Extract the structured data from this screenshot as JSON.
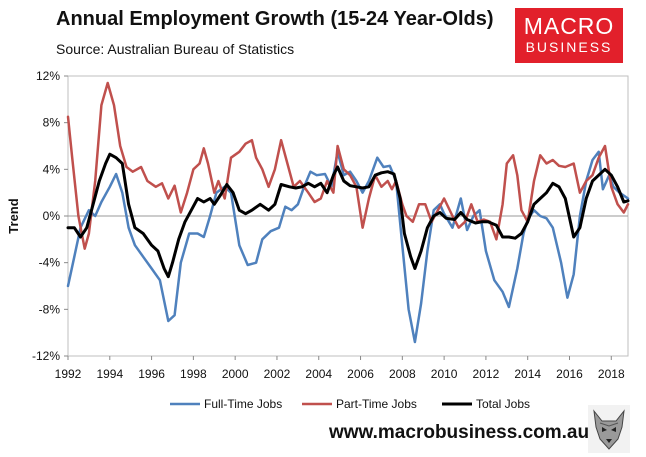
{
  "header": {
    "title": "Annual Employment Growth (15-24 Year-Olds)",
    "subtitle": "Source: Australian Bureau of Statistics"
  },
  "logo": {
    "top": "MACRO",
    "bottom": "BUSINESS",
    "color": "#e2202b"
  },
  "footer": {
    "website": "www.macrobusiness.com.au"
  },
  "chart_data": {
    "type": "line",
    "title": "Annual Employment Growth (15-24 Year-Olds)",
    "xlabel": "",
    "ylabel": "Trend",
    "xlim": [
      1992,
      2018.8
    ],
    "ylim": [
      -12,
      12
    ],
    "y_ticks": [
      -12,
      -8,
      -4,
      0,
      4,
      8,
      12
    ],
    "y_tick_labels": [
      "-12%",
      "-8%",
      "-4%",
      "0%",
      "4%",
      "8%",
      "12%"
    ],
    "x_ticks": [
      1992,
      1994,
      1996,
      1998,
      2000,
      2002,
      2004,
      2006,
      2008,
      2010,
      2012,
      2014,
      2016,
      2018
    ],
    "x_tick_labels": [
      "1992",
      "1994",
      "1996",
      "1998",
      "2000",
      "2002",
      "2004",
      "2006",
      "2008",
      "2010",
      "2012",
      "2014",
      "2016",
      "2018"
    ],
    "legend_position": "bottom",
    "series": [
      {
        "name": "Full-Time Jobs",
        "color": "#4f81bd",
        "points": [
          [
            1992,
            -6
          ],
          [
            1992.3,
            -3.5
          ],
          [
            1992.6,
            -1
          ],
          [
            1993,
            0.5
          ],
          [
            1993.3,
            0
          ],
          [
            1993.6,
            1.2
          ],
          [
            1994,
            2.5
          ],
          [
            1994.3,
            3.6
          ],
          [
            1994.6,
            2
          ],
          [
            1994.9,
            -1
          ],
          [
            1995.2,
            -2.5
          ],
          [
            1995.6,
            -3.5
          ],
          [
            1996,
            -4.5
          ],
          [
            1996.4,
            -5.5
          ],
          [
            1996.8,
            -9
          ],
          [
            1997.1,
            -8.5
          ],
          [
            1997.4,
            -4
          ],
          [
            1997.8,
            -1.5
          ],
          [
            1998.2,
            -1.5
          ],
          [
            1998.5,
            -1.8
          ],
          [
            1998.8,
            0
          ],
          [
            1999.1,
            2
          ],
          [
            1999.5,
            2.5
          ],
          [
            1999.8,
            2
          ],
          [
            2000.2,
            -2.5
          ],
          [
            2000.6,
            -4.2
          ],
          [
            2001,
            -4
          ],
          [
            2001.3,
            -2
          ],
          [
            2001.7,
            -1.3
          ],
          [
            2002.1,
            -1
          ],
          [
            2002.4,
            0.8
          ],
          [
            2002.7,
            0.5
          ],
          [
            2003,
            1
          ],
          [
            2003.3,
            2.5
          ],
          [
            2003.6,
            3.8
          ],
          [
            2003.9,
            3.5
          ],
          [
            2004.3,
            3.6
          ],
          [
            2004.6,
            2.5
          ],
          [
            2004.9,
            5.5
          ],
          [
            2005.2,
            3.5
          ],
          [
            2005.5,
            3.8
          ],
          [
            2005.8,
            3
          ],
          [
            2006.1,
            2
          ],
          [
            2006.4,
            3
          ],
          [
            2006.8,
            5
          ],
          [
            2007.1,
            4.2
          ],
          [
            2007.4,
            4.3
          ],
          [
            2007.7,
            3
          ],
          [
            2008,
            -2.5
          ],
          [
            2008.3,
            -8
          ],
          [
            2008.6,
            -10.8
          ],
          [
            2008.9,
            -7.5
          ],
          [
            2009.2,
            -3
          ],
          [
            2009.5,
            0.5
          ],
          [
            2009.8,
            1
          ],
          [
            2010,
            0.2
          ],
          [
            2010.4,
            -1
          ],
          [
            2010.8,
            1.5
          ],
          [
            2011.1,
            -1.2
          ],
          [
            2011.4,
            0
          ],
          [
            2011.7,
            0.5
          ],
          [
            2012,
            -3
          ],
          [
            2012.4,
            -5.5
          ],
          [
            2012.8,
            -6.5
          ],
          [
            2013.1,
            -7.8
          ],
          [
            2013.5,
            -4.5
          ],
          [
            2013.8,
            -1.5
          ],
          [
            2014,
            -0.3
          ],
          [
            2014.3,
            0.5
          ],
          [
            2014.6,
            0
          ],
          [
            2014.9,
            -0.2
          ],
          [
            2015.2,
            -1
          ],
          [
            2015.6,
            -4
          ],
          [
            2015.9,
            -7
          ],
          [
            2016.2,
            -5
          ],
          [
            2016.5,
            0
          ],
          [
            2016.8,
            3
          ],
          [
            2017.1,
            4.8
          ],
          [
            2017.4,
            5.5
          ],
          [
            2017.6,
            2.3
          ],
          [
            2017.9,
            3.5
          ],
          [
            2018.1,
            2.5
          ],
          [
            2018.4,
            2
          ],
          [
            2018.8,
            1.5
          ]
        ]
      },
      {
        "name": "Part-Time Jobs",
        "color": "#c0504d",
        "points": [
          [
            1992,
            8.5
          ],
          [
            1992.2,
            5
          ],
          [
            1992.5,
            0
          ],
          [
            1992.8,
            -2.8
          ],
          [
            1993,
            -1.5
          ],
          [
            1993.3,
            3
          ],
          [
            1993.6,
            9.5
          ],
          [
            1993.9,
            11.4
          ],
          [
            1994.2,
            9.5
          ],
          [
            1994.5,
            6
          ],
          [
            1994.8,
            4.2
          ],
          [
            1995.1,
            3.8
          ],
          [
            1995.5,
            4.2
          ],
          [
            1995.8,
            3
          ],
          [
            1996.2,
            2.5
          ],
          [
            1996.5,
            2.8
          ],
          [
            1996.8,
            1.5
          ],
          [
            1997.1,
            2.6
          ],
          [
            1997.4,
            0.3
          ],
          [
            1997.7,
            2
          ],
          [
            1998,
            4
          ],
          [
            1998.3,
            4.5
          ],
          [
            1998.5,
            5.8
          ],
          [
            1998.7,
            4.5
          ],
          [
            1999,
            2
          ],
          [
            1999.2,
            3
          ],
          [
            1999.5,
            1.5
          ],
          [
            1999.8,
            5
          ],
          [
            2000.2,
            5.5
          ],
          [
            2000.5,
            6.2
          ],
          [
            2000.8,
            6.5
          ],
          [
            2001,
            5
          ],
          [
            2001.3,
            4
          ],
          [
            2001.6,
            2.5
          ],
          [
            2001.9,
            4
          ],
          [
            2002.2,
            6.5
          ],
          [
            2002.5,
            4.5
          ],
          [
            2002.8,
            2.5
          ],
          [
            2003.1,
            3
          ],
          [
            2003.5,
            2
          ],
          [
            2003.8,
            1.2
          ],
          [
            2004.1,
            1.5
          ],
          [
            2004.4,
            3
          ],
          [
            2004.7,
            2
          ],
          [
            2004.9,
            6
          ],
          [
            2005.2,
            4
          ],
          [
            2005.5,
            3.5
          ],
          [
            2005.8,
            2.5
          ],
          [
            2006.1,
            -1
          ],
          [
            2006.4,
            1.5
          ],
          [
            2006.7,
            3.5
          ],
          [
            2007,
            2.5
          ],
          [
            2007.3,
            3
          ],
          [
            2007.5,
            2.3
          ],
          [
            2007.7,
            3
          ],
          [
            2008,
            1
          ],
          [
            2008.2,
            0
          ],
          [
            2008.5,
            -0.5
          ],
          [
            2008.8,
            1
          ],
          [
            2009.1,
            1
          ],
          [
            2009.4,
            -0.5
          ],
          [
            2009.7,
            0.5
          ],
          [
            2010,
            1.5
          ],
          [
            2010.4,
            0
          ],
          [
            2010.7,
            -1
          ],
          [
            2011,
            -0.5
          ],
          [
            2011.3,
            1
          ],
          [
            2011.6,
            -0.5
          ],
          [
            2011.9,
            -0.3
          ],
          [
            2012.2,
            -0.5
          ],
          [
            2012.5,
            -2
          ],
          [
            2012.8,
            1
          ],
          [
            2013,
            4.5
          ],
          [
            2013.3,
            5.2
          ],
          [
            2013.5,
            3.5
          ],
          [
            2013.7,
            0.5
          ],
          [
            2014,
            -0.5
          ],
          [
            2014.3,
            3
          ],
          [
            2014.6,
            5.2
          ],
          [
            2014.9,
            4.5
          ],
          [
            2015.2,
            4.8
          ],
          [
            2015.5,
            4.3
          ],
          [
            2015.8,
            4.2
          ],
          [
            2016.2,
            4.5
          ],
          [
            2016.5,
            2
          ],
          [
            2016.8,
            3
          ],
          [
            2017.1,
            3.5
          ],
          [
            2017.4,
            5
          ],
          [
            2017.7,
            6
          ],
          [
            2018,
            2.5
          ],
          [
            2018.3,
            1
          ],
          [
            2018.6,
            0.3
          ],
          [
            2018.8,
            1
          ]
        ]
      },
      {
        "name": "Total Jobs",
        "color": "#000000",
        "points": [
          [
            1992,
            -1
          ],
          [
            1992.3,
            -1
          ],
          [
            1992.6,
            -1.8
          ],
          [
            1992.9,
            -1
          ],
          [
            1993.2,
            1
          ],
          [
            1993.5,
            3
          ],
          [
            1993.8,
            4.5
          ],
          [
            1994,
            5.3
          ],
          [
            1994.3,
            5
          ],
          [
            1994.6,
            4.5
          ],
          [
            1994.9,
            1
          ],
          [
            1995.2,
            -1
          ],
          [
            1995.6,
            -1.5
          ],
          [
            1996,
            -2.5
          ],
          [
            1996.3,
            -3
          ],
          [
            1996.6,
            -4.5
          ],
          [
            1996.8,
            -5.2
          ],
          [
            1997,
            -4
          ],
          [
            1997.3,
            -2
          ],
          [
            1997.6,
            -0.5
          ],
          [
            1997.9,
            0.5
          ],
          [
            1998.2,
            1.5
          ],
          [
            1998.5,
            1.2
          ],
          [
            1998.8,
            1.5
          ],
          [
            1999,
            1
          ],
          [
            1999.3,
            1.8
          ],
          [
            1999.6,
            2.7
          ],
          [
            1999.9,
            2
          ],
          [
            2000.2,
            0.5
          ],
          [
            2000.5,
            0.2
          ],
          [
            2000.8,
            0.5
          ],
          [
            2001.2,
            1
          ],
          [
            2001.6,
            0.5
          ],
          [
            2001.9,
            1
          ],
          [
            2002.2,
            2.7
          ],
          [
            2002.6,
            2.5
          ],
          [
            2002.9,
            2.4
          ],
          [
            2003.2,
            2.5
          ],
          [
            2003.5,
            2.8
          ],
          [
            2003.8,
            2.5
          ],
          [
            2004.1,
            2.8
          ],
          [
            2004.4,
            2
          ],
          [
            2004.7,
            3.5
          ],
          [
            2004.9,
            4.2
          ],
          [
            2005.2,
            3
          ],
          [
            2005.5,
            2.6
          ],
          [
            2005.8,
            2.5
          ],
          [
            2006.1,
            2.4
          ],
          [
            2006.4,
            2.5
          ],
          [
            2006.7,
            3.5
          ],
          [
            2007,
            3.7
          ],
          [
            2007.3,
            3.8
          ],
          [
            2007.6,
            3.6
          ],
          [
            2007.9,
            1.5
          ],
          [
            2008.1,
            -1.5
          ],
          [
            2008.4,
            -3.5
          ],
          [
            2008.6,
            -4.5
          ],
          [
            2008.9,
            -3
          ],
          [
            2009.2,
            -1
          ],
          [
            2009.5,
            0
          ],
          [
            2009.8,
            0.3
          ],
          [
            2010.1,
            -0.2
          ],
          [
            2010.5,
            -0.3
          ],
          [
            2010.8,
            0.3
          ],
          [
            2011.1,
            -0.3
          ],
          [
            2011.5,
            -0.6
          ],
          [
            2011.8,
            -0.5
          ],
          [
            2012.1,
            -0.5
          ],
          [
            2012.5,
            -0.8
          ],
          [
            2012.8,
            -1.8
          ],
          [
            2013.1,
            -1.8
          ],
          [
            2013.4,
            -1.9
          ],
          [
            2013.7,
            -1.5
          ],
          [
            2014,
            -0.5
          ],
          [
            2014.3,
            1
          ],
          [
            2014.6,
            1.5
          ],
          [
            2014.9,
            2
          ],
          [
            2015.2,
            2.8
          ],
          [
            2015.5,
            2.5
          ],
          [
            2015.8,
            1.5
          ],
          [
            2016.2,
            -1.8
          ],
          [
            2016.5,
            -1
          ],
          [
            2016.8,
            1.5
          ],
          [
            2017.1,
            3
          ],
          [
            2017.4,
            3.5
          ],
          [
            2017.7,
            4
          ],
          [
            2018,
            3.5
          ],
          [
            2018.3,
            2.5
          ],
          [
            2018.6,
            1.2
          ],
          [
            2018.8,
            1.3
          ]
        ]
      }
    ]
  }
}
